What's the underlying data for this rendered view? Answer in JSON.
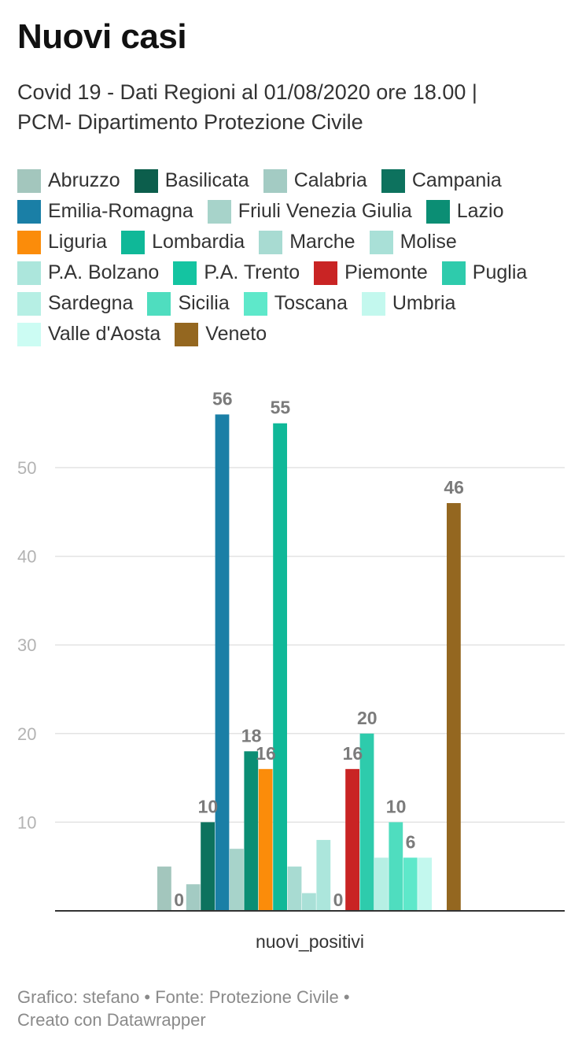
{
  "header": {
    "title": "Nuovi casi",
    "subtitle_line1": "Covid 19 - Dati Regioni al 01/08/2020 ore 18.00 |",
    "subtitle_line2": "PCM- Dipartimento Protezione Civile"
  },
  "footer": {
    "line1": "Grafico: stefano • Fonte: Protezione Civile •",
    "line2": "Creato con Datawrapper"
  },
  "chart_data": {
    "type": "bar",
    "title": "Nuovi casi",
    "categories": [
      "nuovi_positivi"
    ],
    "xlabel": "",
    "ylabel": "",
    "ylim": [
      0,
      56
    ],
    "yticks": [
      10,
      20,
      30,
      40,
      50
    ],
    "grid": true,
    "legend_position": "top",
    "series": [
      {
        "name": "Abruzzo",
        "values": [
          5
        ],
        "color": "#a3c6bd",
        "label": ""
      },
      {
        "name": "Basilicata",
        "values": [
          0
        ],
        "color": "#0c5e4c",
        "label": "0"
      },
      {
        "name": "Calabria",
        "values": [
          3
        ],
        "color": "#a3cbc3",
        "label": ""
      },
      {
        "name": "Campania",
        "values": [
          10
        ],
        "color": "#0d725e",
        "label": "10"
      },
      {
        "name": "Emilia-Romagna",
        "values": [
          56
        ],
        "color": "#1a7fa6",
        "label": "56"
      },
      {
        "name": "Friuli Venezia Giulia",
        "values": [
          7
        ],
        "color": "#a7d3ca",
        "label": ""
      },
      {
        "name": "Lazio",
        "values": [
          18
        ],
        "color": "#0b8e74",
        "label": "18"
      },
      {
        "name": "Liguria",
        "values": [
          16
        ],
        "color": "#fb8c0a",
        "label": "16"
      },
      {
        "name": "Lombardia",
        "values": [
          55
        ],
        "color": "#0fb898",
        "label": "55"
      },
      {
        "name": "Marche",
        "values": [
          5
        ],
        "color": "#a8dbd2",
        "label": ""
      },
      {
        "name": "Molise",
        "values": [
          2
        ],
        "color": "#a9e0d7",
        "label": ""
      },
      {
        "name": "P.A. Bolzano",
        "values": [
          8
        ],
        "color": "#ace6dc",
        "label": ""
      },
      {
        "name": "P.A. Trento",
        "values": [
          0
        ],
        "color": "#14c4a1",
        "label": "0"
      },
      {
        "name": "Piemonte",
        "values": [
          16
        ],
        "color": "#c92424",
        "label": "16"
      },
      {
        "name": "Puglia",
        "values": [
          20
        ],
        "color": "#2ecbac",
        "label": "20"
      },
      {
        "name": "Sardegna",
        "values": [
          6
        ],
        "color": "#b6efe4",
        "label": ""
      },
      {
        "name": "Sicilia",
        "values": [
          10
        ],
        "color": "#4fddbf",
        "label": "10"
      },
      {
        "name": "Toscana",
        "values": [
          6
        ],
        "color": "#5ee8ca",
        "label": "6"
      },
      {
        "name": "Umbria",
        "values": [
          6
        ],
        "color": "#c3f8ee",
        "label": ""
      },
      {
        "name": "Valle d'Aosta",
        "values": [
          0
        ],
        "color": "#ccfcf3",
        "label": ""
      },
      {
        "name": "Veneto",
        "values": [
          46
        ],
        "color": "#946720",
        "label": "46"
      }
    ]
  }
}
